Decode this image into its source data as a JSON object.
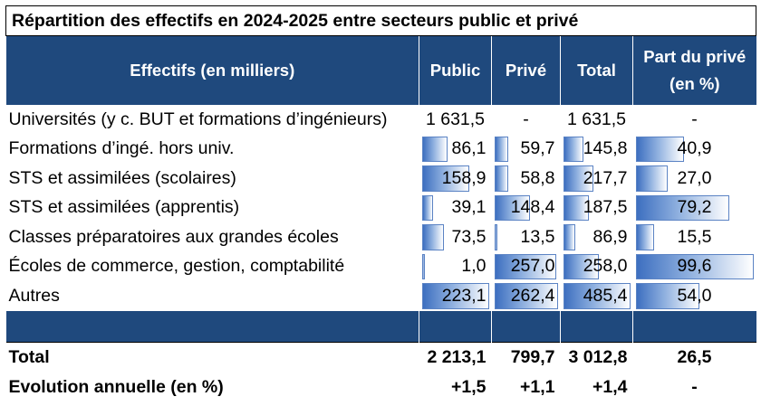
{
  "title": "Répartition des effectifs en 2024-2025 entre secteurs public et privé",
  "headers": {
    "label": "Effectifs (en milliers)",
    "public": "Public",
    "prive": "Privé",
    "total": "Total",
    "part_line1": "Part du privé",
    "part_line2": "(en %)"
  },
  "rows": [
    {
      "label": "Universités (y c. BUT et formations d’ingénieurs)",
      "public": "1 631,5",
      "prive": "-",
      "total": "1 631,5",
      "part": "-",
      "public_value": null,
      "prive_value": null,
      "total_value": null,
      "part_value": null
    },
    {
      "label": "Formations d’ingé. hors univ.",
      "public": "86,1",
      "prive": "59,7",
      "total": "145,8",
      "part": "40,9",
      "public_value": 86.1,
      "prive_value": 59.7,
      "total_value": 145.8,
      "part_value": 40.9
    },
    {
      "label": "STS et assimilées (scolaires)",
      "public": "158,9",
      "prive": "58,8",
      "total": "217,7",
      "part": "27,0",
      "public_value": 158.9,
      "prive_value": 58.8,
      "total_value": 217.7,
      "part_value": 27.0
    },
    {
      "label": "STS et assimilées (apprentis)",
      "public": "39,1",
      "prive": "148,4",
      "total": "187,5",
      "part": "79,2",
      "public_value": 39.1,
      "prive_value": 148.4,
      "total_value": 187.5,
      "part_value": 79.2
    },
    {
      "label": "Classes préparatoires aux grandes écoles",
      "public": "73,5",
      "prive": "13,5",
      "total": "86,9",
      "part": "15,5",
      "public_value": 73.5,
      "prive_value": 13.5,
      "total_value": 86.9,
      "part_value": 15.5
    },
    {
      "label": "Écoles de commerce, gestion, comptabilité",
      "public": "1,0",
      "prive": "257,0",
      "total": "258,0",
      "part": "99,6",
      "public_value": 1.0,
      "prive_value": 257.0,
      "total_value": 258.0,
      "part_value": 99.6
    },
    {
      "label": "Autres",
      "public": "223,1",
      "prive": "262,4",
      "total": "485,4",
      "part": "54,0",
      "public_value": 223.1,
      "prive_value": 262.4,
      "total_value": 485.4,
      "part_value": 54.0
    }
  ],
  "total_row": {
    "label": "Total",
    "public": "2 213,1",
    "prive": "799,7",
    "total": "3 012,8",
    "part": "26,5"
  },
  "evolution_row": {
    "label": "Evolution annuelle (en %)",
    "public": "+1,5",
    "prive": "+1,1",
    "total": "+1,4",
    "part": "-"
  },
  "colors": {
    "header_bg": "#1f497d",
    "bar_start": "#3d6fc0",
    "bar_border": "#5b83c4"
  }
}
